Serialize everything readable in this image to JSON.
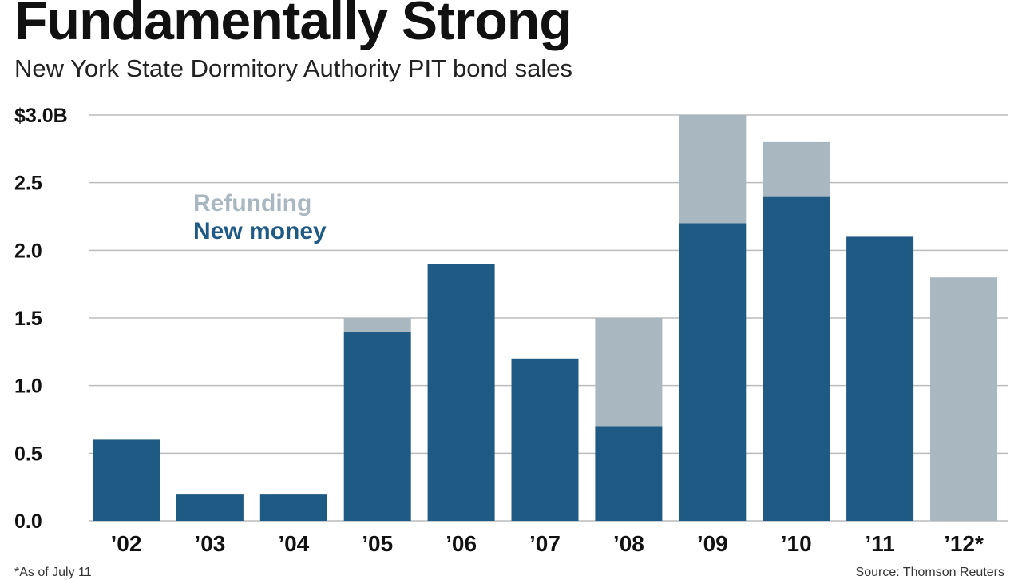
{
  "header": {
    "title": "Fundamentally Strong",
    "subtitle": "New York State Dormitory Authority PIT bond sales"
  },
  "footer": {
    "footnote": "*As of July 11",
    "source": "Source: Thomson Reuters"
  },
  "colors": {
    "new_money": "#1f5a85",
    "refunding": "#a9b7c1",
    "gridline": "#bcbcbc"
  },
  "chart_data": {
    "type": "bar",
    "stacked": true,
    "title": "Fundamentally Strong",
    "subtitle": "New York State Dormitory Authority PIT bond sales",
    "xlabel": "",
    "ylabel": "",
    "ylim": [
      0,
      3.0
    ],
    "yticks": [
      0,
      0.5,
      1.0,
      1.5,
      2.0,
      2.5,
      3.0
    ],
    "ytick_labels": [
      "0.0",
      "0.5",
      "1.0",
      "1.5",
      "2.0",
      "2.5",
      "$3.0B"
    ],
    "grid": true,
    "legend_position": "top-left",
    "categories": [
      "’02",
      "’03",
      "’04",
      "’05",
      "’06",
      "’07",
      "’08",
      "’09",
      "’10",
      "’11",
      "’12*"
    ],
    "series": [
      {
        "name": "New money",
        "color": "#1f5a85",
        "values": [
          0.6,
          0.2,
          0.2,
          1.4,
          1.9,
          1.2,
          0.7,
          2.2,
          2.4,
          2.1,
          0
        ]
      },
      {
        "name": "Refunding",
        "color": "#a9b7c1",
        "values": [
          0,
          0,
          0,
          0.1,
          0,
          0,
          0.8,
          0.8,
          0.4,
          0,
          1.8
        ]
      }
    ]
  }
}
